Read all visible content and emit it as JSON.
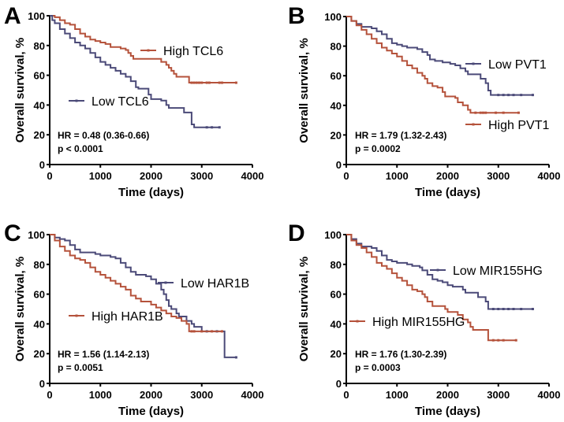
{
  "colors": {
    "high": "#b5523b",
    "low": "#4b4a78",
    "axis": "#000000"
  },
  "chart_data": [
    {
      "type": "line",
      "panel_label": "A",
      "xlabel": "Time (days)",
      "ylabel": "Overall survival, %",
      "xlim": [
        0,
        4000
      ],
      "ylim": [
        0,
        100
      ],
      "xticks": [
        0,
        1000,
        2000,
        3000,
        4000
      ],
      "yticks": [
        0,
        20,
        40,
        60,
        80,
        100
      ],
      "grid": false,
      "stats": {
        "hr": "HR = 0.48 (0.36-0.66)",
        "p": "p < 0.0001"
      },
      "series": [
        {
          "name": "High TCL6",
          "group": "high",
          "end": 3680,
          "censor": [
            2800,
            2850,
            2900,
            2950,
            3000,
            3100,
            3150,
            3350,
            3400,
            3680
          ],
          "steps": [
            [
              0,
              100
            ],
            [
              100,
              99
            ],
            [
              200,
              97
            ],
            [
              300,
              95
            ],
            [
              400,
              94
            ],
            [
              500,
              91
            ],
            [
              600,
              88
            ],
            [
              700,
              86
            ],
            [
              800,
              84
            ],
            [
              900,
              83
            ],
            [
              1000,
              82
            ],
            [
              1100,
              81
            ],
            [
              1200,
              79
            ],
            [
              1400,
              78
            ],
            [
              1500,
              77
            ],
            [
              1550,
              75
            ],
            [
              1600,
              73
            ],
            [
              1650,
              71
            ],
            [
              2100,
              71
            ],
            [
              2200,
              69
            ],
            [
              2300,
              67
            ],
            [
              2350,
              65
            ],
            [
              2400,
              63
            ],
            [
              2450,
              61
            ],
            [
              2500,
              59
            ],
            [
              2750,
              55
            ]
          ]
        },
        {
          "name": "Low TCL6",
          "group": "low",
          "end": 3350,
          "censor": [
            3100,
            3200,
            3350
          ],
          "steps": [
            [
              0,
              100
            ],
            [
              50,
              97
            ],
            [
              100,
              95
            ],
            [
              200,
              91
            ],
            [
              300,
              88
            ],
            [
              400,
              85
            ],
            [
              500,
              82
            ],
            [
              600,
              80
            ],
            [
              700,
              78
            ],
            [
              800,
              75
            ],
            [
              900,
              72
            ],
            [
              1000,
              69
            ],
            [
              1100,
              67
            ],
            [
              1200,
              65
            ],
            [
              1300,
              63
            ],
            [
              1400,
              61
            ],
            [
              1500,
              59
            ],
            [
              1600,
              56
            ],
            [
              1700,
              52
            ],
            [
              1750,
              51
            ],
            [
              1950,
              47
            ],
            [
              2000,
              44
            ],
            [
              2200,
              43
            ],
            [
              2300,
              40
            ],
            [
              2350,
              38
            ],
            [
              2650,
              35
            ],
            [
              2800,
              27
            ],
            [
              2850,
              25
            ]
          ]
        }
      ]
    },
    {
      "type": "line",
      "panel_label": "B",
      "xlabel": "Time (days)",
      "ylabel": "Overall survival, %",
      "xlim": [
        0,
        4000
      ],
      "ylim": [
        0,
        100
      ],
      "xticks": [
        0,
        1000,
        2000,
        3000,
        4000
      ],
      "yticks": [
        0,
        20,
        40,
        60,
        80,
        100
      ],
      "grid": false,
      "stats": {
        "hr": "HR = 1.79 (1.32-2.43)",
        "p": "p = 0.0002"
      },
      "series": [
        {
          "name": "Low PVT1",
          "group": "low",
          "end": 3680,
          "censor": [
            3000,
            3100,
            3200,
            3300,
            3450,
            3680
          ],
          "steps": [
            [
              0,
              100
            ],
            [
              100,
              97
            ],
            [
              200,
              95
            ],
            [
              300,
              93
            ],
            [
              500,
              92
            ],
            [
              600,
              90
            ],
            [
              700,
              88
            ],
            [
              800,
              85
            ],
            [
              900,
              82
            ],
            [
              1000,
              81
            ],
            [
              1100,
              80
            ],
            [
              1200,
              79
            ],
            [
              1400,
              78
            ],
            [
              1500,
              76
            ],
            [
              1600,
              74
            ],
            [
              1650,
              71
            ],
            [
              1750,
              70
            ],
            [
              1900,
              69
            ],
            [
              2050,
              68
            ],
            [
              2150,
              67
            ],
            [
              2250,
              65
            ],
            [
              2350,
              63
            ],
            [
              2400,
              61
            ],
            [
              2650,
              58
            ],
            [
              2750,
              55
            ],
            [
              2800,
              50
            ],
            [
              2850,
              47
            ]
          ]
        },
        {
          "name": "High PVT1",
          "group": "high",
          "end": 3400,
          "censor": [
            2550,
            2650,
            2700,
            2750,
            2950,
            3100,
            3400
          ],
          "steps": [
            [
              0,
              100
            ],
            [
              100,
              97
            ],
            [
              200,
              94
            ],
            [
              300,
              91
            ],
            [
              400,
              88
            ],
            [
              500,
              85
            ],
            [
              600,
              82
            ],
            [
              700,
              79
            ],
            [
              800,
              77
            ],
            [
              900,
              75
            ],
            [
              1000,
              73
            ],
            [
              1100,
              70
            ],
            [
              1200,
              67
            ],
            [
              1300,
              65
            ],
            [
              1400,
              62
            ],
            [
              1500,
              60
            ],
            [
              1550,
              58
            ],
            [
              1600,
              55
            ],
            [
              1700,
              53
            ],
            [
              1800,
              52
            ],
            [
              1900,
              49
            ],
            [
              1950,
              46
            ],
            [
              2150,
              45
            ],
            [
              2200,
              42
            ],
            [
              2300,
              40
            ],
            [
              2400,
              37
            ],
            [
              2450,
              35
            ]
          ]
        }
      ]
    },
    {
      "type": "line",
      "panel_label": "C",
      "xlabel": "Time (days)",
      "ylabel": "Overall survival, %",
      "xlim": [
        0,
        4000
      ],
      "ylim": [
        0,
        100
      ],
      "xticks": [
        0,
        1000,
        2000,
        3000,
        4000
      ],
      "yticks": [
        0,
        20,
        40,
        60,
        80,
        100
      ],
      "grid": false,
      "stats": {
        "hr": "HR = 1.56 (1.14-2.13)",
        "p": "p = 0.0051"
      },
      "series": [
        {
          "name": "Low HAR1B",
          "group": "low",
          "end": 3680,
          "censor": [
            3100,
            3300,
            3680
          ],
          "steps": [
            [
              0,
              100
            ],
            [
              100,
              98
            ],
            [
              200,
              97
            ],
            [
              300,
              96
            ],
            [
              400,
              93
            ],
            [
              500,
              90
            ],
            [
              600,
              88
            ],
            [
              900,
              87
            ],
            [
              1000,
              86
            ],
            [
              1200,
              85
            ],
            [
              1300,
              84
            ],
            [
              1400,
              81
            ],
            [
              1500,
              78
            ],
            [
              1600,
              75
            ],
            [
              1700,
              73
            ],
            [
              1900,
              72
            ],
            [
              2000,
              70
            ],
            [
              2100,
              67
            ],
            [
              2200,
              63
            ],
            [
              2250,
              60
            ],
            [
              2300,
              56
            ],
            [
              2350,
              52
            ],
            [
              2400,
              50
            ],
            [
              2500,
              47
            ],
            [
              2550,
              45
            ],
            [
              2700,
              42
            ],
            [
              2800,
              40
            ],
            [
              2850,
              38
            ],
            [
              3000,
              35
            ],
            [
              3450,
              17.5
            ]
          ]
        },
        {
          "name": "High HAR1B",
          "group": "high",
          "end": 3400,
          "censor": [
            2800,
            2850,
            3000,
            3200,
            3400
          ],
          "steps": [
            [
              0,
              100
            ],
            [
              100,
              96
            ],
            [
              200,
              92
            ],
            [
              300,
              89
            ],
            [
              400,
              86
            ],
            [
              500,
              84
            ],
            [
              600,
              83
            ],
            [
              700,
              81
            ],
            [
              800,
              78
            ],
            [
              900,
              75
            ],
            [
              1000,
              73
            ],
            [
              1100,
              71
            ],
            [
              1200,
              69
            ],
            [
              1300,
              67
            ],
            [
              1400,
              65
            ],
            [
              1500,
              63
            ],
            [
              1600,
              59
            ],
            [
              1700,
              57
            ],
            [
              1800,
              55
            ],
            [
              2000,
              53
            ],
            [
              2100,
              51
            ],
            [
              2200,
              49
            ],
            [
              2300,
              47
            ],
            [
              2400,
              45
            ],
            [
              2500,
              44
            ],
            [
              2600,
              42
            ],
            [
              2700,
              40
            ],
            [
              2750,
              35
            ]
          ]
        }
      ]
    },
    {
      "type": "line",
      "panel_label": "D",
      "xlabel": "Time (days)",
      "ylabel": "Overall survival, %",
      "xlim": [
        0,
        4000
      ],
      "ylim": [
        0,
        100
      ],
      "xticks": [
        0,
        1000,
        2000,
        3000,
        4000
      ],
      "yticks": [
        0,
        20,
        40,
        60,
        80,
        100
      ],
      "grid": false,
      "stats": {
        "hr": "HR = 1.76 (1.30-2.39)",
        "p": "p = 0.0003"
      },
      "series": [
        {
          "name": "Low MIR155HG",
          "group": "low",
          "end": 3680,
          "censor": [
            2900,
            3000,
            3100,
            3200,
            3300,
            3450,
            3680
          ],
          "steps": [
            [
              0,
              100
            ],
            [
              100,
              97
            ],
            [
              200,
              94
            ],
            [
              300,
              92
            ],
            [
              500,
              91
            ],
            [
              600,
              89
            ],
            [
              700,
              86
            ],
            [
              800,
              83
            ],
            [
              900,
              82
            ],
            [
              1000,
              81
            ],
            [
              1200,
              80
            ],
            [
              1300,
              79
            ],
            [
              1450,
              78
            ],
            [
              1500,
              76
            ],
            [
              1600,
              73
            ],
            [
              1700,
              70
            ],
            [
              1800,
              69
            ],
            [
              1900,
              68
            ],
            [
              2000,
              66
            ],
            [
              2100,
              65
            ],
            [
              2300,
              63
            ],
            [
              2350,
              61
            ],
            [
              2600,
              58
            ],
            [
              2750,
              55
            ],
            [
              2800,
              50
            ]
          ]
        },
        {
          "name": "High MIR155HG",
          "group": "high",
          "end": 3350,
          "censor": [
            2900,
            3000,
            3100,
            3350
          ],
          "steps": [
            [
              0,
              100
            ],
            [
              100,
              96
            ],
            [
              200,
              93
            ],
            [
              300,
              91
            ],
            [
              400,
              88
            ],
            [
              500,
              85
            ],
            [
              600,
              81
            ],
            [
              700,
              79
            ],
            [
              800,
              77
            ],
            [
              900,
              74
            ],
            [
              1000,
              71
            ],
            [
              1100,
              69
            ],
            [
              1200,
              66
            ],
            [
              1300,
              63
            ],
            [
              1400,
              62
            ],
            [
              1500,
              60
            ],
            [
              1550,
              58
            ],
            [
              1600,
              55
            ],
            [
              1700,
              52
            ],
            [
              1950,
              50
            ],
            [
              2000,
              48
            ],
            [
              2200,
              46
            ],
            [
              2300,
              43
            ],
            [
              2400,
              41
            ],
            [
              2450,
              38
            ],
            [
              2500,
              36
            ],
            [
              2800,
              29
            ]
          ]
        }
      ]
    }
  ]
}
